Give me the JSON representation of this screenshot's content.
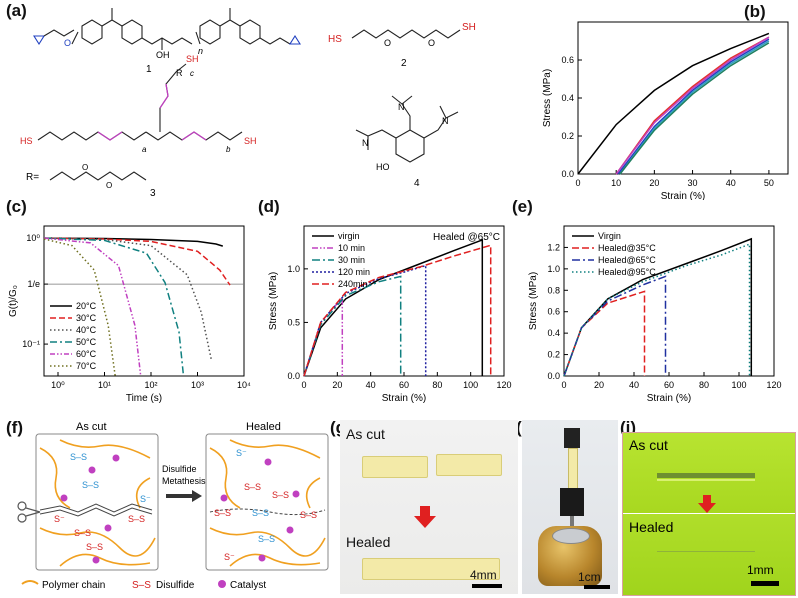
{
  "panel_labels": {
    "a": "(a)",
    "b": "(b)",
    "c": "(c)",
    "d": "(d)",
    "e": "(e)",
    "f": "(f)",
    "g": "(g)",
    "h": "(h)",
    "i": "(i)"
  },
  "chem": {
    "compound_1_num": "1",
    "compound_2_num": "2",
    "compound_3_num": "3",
    "compound_4_num": "4",
    "c1_OH": "OH",
    "c1_n": "n",
    "c2_HS": "HS",
    "c2_SH": "SH",
    "c3_SH_top": "SH",
    "c3_HS_left": "HS",
    "c3_SH_right": "SH",
    "c3_R": "R",
    "c3_a": "a",
    "c3_b": "b",
    "c3_c": "c",
    "c3_R_def": "R=",
    "c4_HO": "HO",
    "c4_N": "N"
  },
  "panel_f": {
    "as_cut": "As cut",
    "healed": "Healed",
    "arrow_text_1": "Disulfide",
    "arrow_text_2": "Metathesis",
    "legend_polymer": "Polymer chain",
    "legend_disulfide_symbol": "S–S",
    "legend_disulfide": "Disulfide",
    "legend_catalyst": "Catalyst",
    "ss": "S–S",
    "s_minus": "S⁻",
    "colors": {
      "polymer": "#f0a020",
      "disulfide_top": "#2a8fd0",
      "disulfide_red": "#d42020",
      "catalyst": "#c040c0"
    }
  },
  "panel_g": {
    "as_cut": "As cut",
    "healed": "Healed",
    "scale": "4mm"
  },
  "panel_h": {
    "scale": "1cm"
  },
  "panel_i": {
    "as_cut": "As cut",
    "healed": "Healed",
    "scale": "1mm"
  },
  "chart_data": [
    {
      "id": "b",
      "type": "line",
      "xlabel": "Strain (%)",
      "ylabel": "Stress (MPa)",
      "xlim": [
        0,
        55
      ],
      "ylim": [
        0,
        0.8
      ],
      "xticks": [
        0,
        10,
        20,
        30,
        40,
        50
      ],
      "yticks": [
        0.0,
        0.2,
        0.4,
        0.6
      ],
      "ytick_labels": [
        "0.0",
        "0.2",
        "0.4",
        "0.6"
      ],
      "series": [
        {
          "color": "#000000",
          "x": [
            0,
            10,
            20,
            30,
            40,
            50
          ],
          "y": [
            0,
            0.26,
            0.44,
            0.57,
            0.66,
            0.74
          ]
        },
        {
          "color": "#e23030",
          "x": [
            10,
            20,
            30,
            40,
            50
          ],
          "y": [
            0,
            0.28,
            0.46,
            0.61,
            0.72
          ]
        },
        {
          "color": "#2040c0",
          "x": [
            10.5,
            20,
            30,
            40,
            50
          ],
          "y": [
            0,
            0.25,
            0.44,
            0.59,
            0.71
          ]
        },
        {
          "color": "#30a0c0",
          "x": [
            11,
            20,
            30,
            40,
            50
          ],
          "y": [
            0,
            0.24,
            0.43,
            0.58,
            0.7
          ]
        },
        {
          "color": "#c040c0",
          "x": [
            10,
            20,
            30,
            40,
            50
          ],
          "y": [
            0,
            0.27,
            0.45,
            0.6,
            0.72
          ]
        },
        {
          "color": "#208060",
          "x": [
            11,
            20,
            30,
            40,
            50
          ],
          "y": [
            0,
            0.23,
            0.42,
            0.57,
            0.69
          ]
        }
      ]
    },
    {
      "id": "c",
      "type": "line",
      "xlabel": "Time (s)",
      "ylabel": "G(t)/G₀",
      "xscale": "log",
      "yscale": "log",
      "xlim": [
        0.5,
        10000
      ],
      "ylim": [
        0.05,
        1.3
      ],
      "xtick_labels": [
        "10⁰",
        "10¹",
        "10²",
        "10³",
        "10⁴"
      ],
      "xticks": [
        1,
        10,
        100,
        1000,
        10000
      ],
      "ytick_labels": [
        "10⁰",
        "1/e",
        "10⁻¹"
      ],
      "yticks": [
        1,
        0.3679,
        0.1
      ],
      "reference_line": 0.3679,
      "series": [
        {
          "name": "20°C",
          "color": "#000000",
          "dash": "",
          "x": [
            0.5,
            10,
            100,
            1000,
            2500,
            3500
          ],
          "y": [
            1,
            0.99,
            0.97,
            0.93,
            0.88,
            0.84
          ]
        },
        {
          "name": "30°C",
          "color": "#e02020",
          "dash": "6,3",
          "x": [
            0.5,
            10,
            100,
            1000,
            3000,
            5000
          ],
          "y": [
            1,
            0.98,
            0.93,
            0.75,
            0.5,
            0.36
          ]
        },
        {
          "name": "40°C",
          "color": "#505050",
          "dash": "1.5,2.5",
          "x": [
            0.5,
            10,
            100,
            600,
            1200,
            2000
          ],
          "y": [
            1,
            0.97,
            0.85,
            0.45,
            0.2,
            0.07
          ]
        },
        {
          "name": "50°C",
          "color": "#108080",
          "dash": "7,3,2,3",
          "x": [
            0.5,
            10,
            80,
            200,
            400,
            500
          ],
          "y": [
            1,
            0.95,
            0.72,
            0.38,
            0.13,
            0.05
          ]
        },
        {
          "name": "60°C",
          "color": "#c040c0",
          "dash": "5,2,1.5,2,1.5,2",
          "x": [
            0.5,
            5,
            20,
            45,
            60
          ],
          "y": [
            1,
            0.9,
            0.55,
            0.15,
            0.05
          ]
        },
        {
          "name": "70°C",
          "color": "#707020",
          "dash": "1.5,2.5",
          "x": [
            0.5,
            2,
            6,
            12,
            17
          ],
          "y": [
            0.98,
            0.85,
            0.5,
            0.15,
            0.05
          ]
        }
      ]
    },
    {
      "id": "d",
      "type": "line",
      "xlabel": "Strain (%)",
      "ylabel": "Stress (MPa)",
      "annotation": "Healed @65°C",
      "xlim": [
        0,
        120
      ],
      "ylim": [
        0,
        1.4
      ],
      "xticks": [
        0,
        20,
        40,
        60,
        80,
        100,
        120
      ],
      "yticks": [
        0.0,
        0.5,
        1.0
      ],
      "ytick_labels": [
        "0.0",
        "0.5",
        "1.0"
      ],
      "series": [
        {
          "name": "virgin",
          "color": "#000000",
          "dash": "",
          "x": [
            0,
            10,
            25,
            45,
            70,
            90,
            107,
            107
          ],
          "y": [
            0,
            0.45,
            0.72,
            0.9,
            1.05,
            1.17,
            1.27,
            0
          ]
        },
        {
          "name": "10 min",
          "color": "#c040c0",
          "dash": "6,2,1.5,2,1.5,2",
          "x": [
            0,
            10,
            23,
            23
          ],
          "y": [
            0,
            0.5,
            0.73,
            0
          ]
        },
        {
          "name": "30 min",
          "color": "#108080",
          "dash": "8,3,2,3",
          "x": [
            0,
            10,
            25,
            45,
            58,
            58
          ],
          "y": [
            0,
            0.48,
            0.75,
            0.88,
            0.93,
            0
          ]
        },
        {
          "name": "120 min",
          "color": "#2020a0",
          "dash": "2,2",
          "x": [
            0,
            10,
            25,
            45,
            60,
            73,
            73
          ],
          "y": [
            0,
            0.5,
            0.77,
            0.91,
            0.97,
            1.03,
            0
          ]
        },
        {
          "name": "240min",
          "color": "#e02020",
          "dash": "7,3",
          "x": [
            0,
            10,
            25,
            45,
            70,
            90,
            112,
            112
          ],
          "y": [
            0,
            0.5,
            0.78,
            0.92,
            1.02,
            1.12,
            1.22,
            0
          ]
        }
      ]
    },
    {
      "id": "e",
      "type": "line",
      "xlabel": "Strain (%)",
      "ylabel": "Stress (MPa)",
      "xlim": [
        0,
        120
      ],
      "ylim": [
        0,
        1.4
      ],
      "xticks": [
        0,
        20,
        40,
        60,
        80,
        100,
        120
      ],
      "yticks": [
        0.0,
        0.2,
        0.4,
        0.6,
        0.8,
        1.0,
        1.2
      ],
      "ytick_labels": [
        "0.0",
        "0.2",
        "0.4",
        "0.6",
        "0.8",
        "1.0",
        "1.2"
      ],
      "series": [
        {
          "name": "Virgin",
          "color": "#000000",
          "dash": "",
          "x": [
            0,
            10,
            25,
            45,
            70,
            90,
            107,
            107
          ],
          "y": [
            0,
            0.45,
            0.72,
            0.9,
            1.05,
            1.17,
            1.28,
            0
          ]
        },
        {
          "name": "Healed@35°C",
          "color": "#e02020",
          "dash": "7,3",
          "x": [
            0,
            10,
            25,
            46,
            46
          ],
          "y": [
            0,
            0.45,
            0.68,
            0.79,
            0
          ]
        },
        {
          "name": "Healed@65°C",
          "color": "#2030a0",
          "dash": "8,3,2,3",
          "x": [
            0,
            10,
            25,
            45,
            58,
            58
          ],
          "y": [
            0,
            0.45,
            0.7,
            0.85,
            0.93,
            0
          ]
        },
        {
          "name": "Healed@95°C",
          "color": "#108080",
          "dash": "1.5,2.5",
          "x": [
            0,
            10,
            25,
            45,
            70,
            90,
            106,
            106
          ],
          "y": [
            0,
            0.45,
            0.72,
            0.88,
            1.03,
            1.13,
            1.23,
            0
          ]
        }
      ]
    }
  ]
}
